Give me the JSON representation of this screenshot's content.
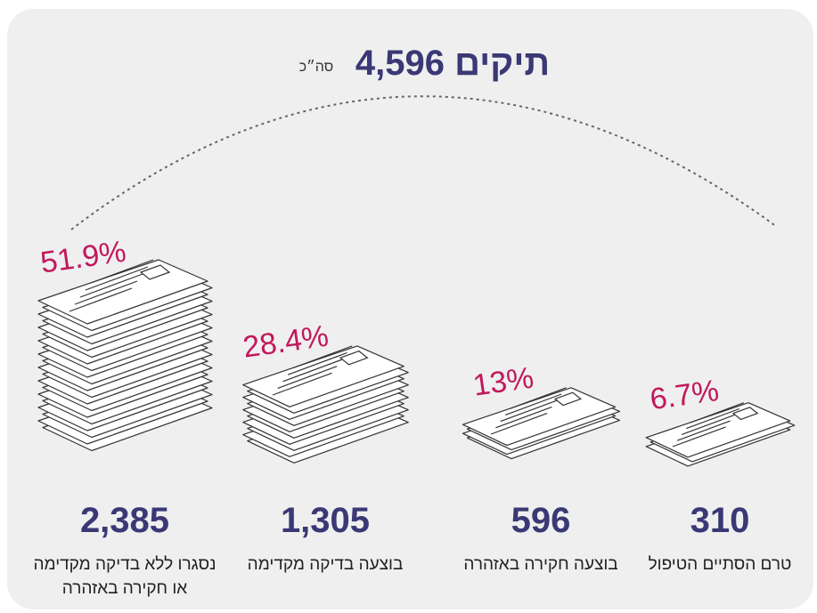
{
  "total": {
    "label": "סה״כ",
    "value": "4,596 תיקים"
  },
  "items": [
    {
      "percent": "51.9%",
      "count": "2,385",
      "label": [
        "נסגרו ללא בדיקה מקדימה",
        "או חקירה באזהרה"
      ]
    },
    {
      "percent": "28.4%",
      "count": "1,305",
      "label": [
        "בוצעה בדיקה מקדימה"
      ]
    },
    {
      "percent": "13%",
      "count": "596",
      "label": [
        "בוצעה חקירה באזהרה"
      ]
    },
    {
      "percent": "6.7%",
      "count": "310",
      "label": [
        "טרם הסתיים הטיפול"
      ]
    }
  ]
}
